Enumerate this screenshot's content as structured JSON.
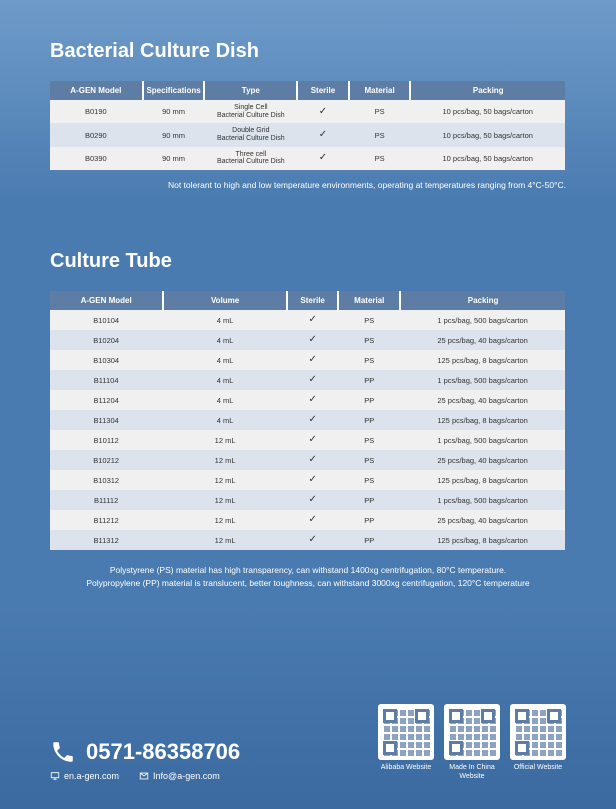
{
  "dish": {
    "title": "Bacterial Culture Dish",
    "columns": [
      "A-GEN Model",
      "Specifications",
      "Type",
      "Sterile",
      "Material",
      "Packing"
    ],
    "col_widths": [
      "18%",
      "12%",
      "18%",
      "10%",
      "12%",
      "30%"
    ],
    "rows": [
      {
        "model": "B0190",
        "spec": "90 mm",
        "type": "Single Cell\nBacterial Culture Dish",
        "sterile": "✓",
        "material": "PS",
        "packing": "10 pcs/bag, 50 bags/carton"
      },
      {
        "model": "B0290",
        "spec": "90 mm",
        "type": "Double Grid\nBacterial Culture Dish",
        "sterile": "✓",
        "material": "PS",
        "packing": "10 pcs/bag, 50 bags/carton"
      },
      {
        "model": "B0390",
        "spec": "90 mm",
        "type": "Three cell\nBacterial Culture Dish",
        "sterile": "✓",
        "material": "PS",
        "packing": "10 pcs/bag, 50 bags/carton"
      }
    ],
    "note": "Not tolerant to high and low temperature environments, operating at temperatures ranging from 4°C-50°C."
  },
  "tube": {
    "title": "Culture Tube",
    "columns": [
      "A-GEN Model",
      "Volume",
      "Sterile",
      "Material",
      "Packing"
    ],
    "col_widths": [
      "22%",
      "24%",
      "10%",
      "12%",
      "32%"
    ],
    "rows": [
      {
        "model": "B10104",
        "vol": "4 mL",
        "sterile": "✓",
        "material": "PS",
        "packing": "1 pcs/bag, 500 bags/carton"
      },
      {
        "model": "B10204",
        "vol": "4 mL",
        "sterile": "✓",
        "material": "PS",
        "packing": "25 pcs/bag, 40 bags/carton"
      },
      {
        "model": "B10304",
        "vol": "4 mL",
        "sterile": "✓",
        "material": "PS",
        "packing": "125 pcs/bag, 8 bags/carton"
      },
      {
        "model": "B11104",
        "vol": "4 mL",
        "sterile": "✓",
        "material": "PP",
        "packing": "1 pcs/bag, 500 bags/carton"
      },
      {
        "model": "B11204",
        "vol": "4 mL",
        "sterile": "✓",
        "material": "PP",
        "packing": "25 pcs/bag, 40 bags/carton"
      },
      {
        "model": "B11304",
        "vol": "4 mL",
        "sterile": "✓",
        "material": "PP",
        "packing": "125 pcs/bag, 8 bags/carton"
      },
      {
        "model": "B10112",
        "vol": "12 mL",
        "sterile": "✓",
        "material": "PS",
        "packing": "1 pcs/bag, 500 bags/carton"
      },
      {
        "model": "B10212",
        "vol": "12 mL",
        "sterile": "✓",
        "material": "PS",
        "packing": "25 pcs/bag, 40 bags/carton"
      },
      {
        "model": "B10312",
        "vol": "12 mL",
        "sterile": "✓",
        "material": "PS",
        "packing": "125 pcs/bag, 8 bags/carton"
      },
      {
        "model": "B11112",
        "vol": "12 mL",
        "sterile": "✓",
        "material": "PP",
        "packing": "1 pcs/bag, 500 bags/carton"
      },
      {
        "model": "B11212",
        "vol": "12 mL",
        "sterile": "✓",
        "material": "PP",
        "packing": "25 pcs/bag, 40 bags/carton"
      },
      {
        "model": "B11312",
        "vol": "12 mL",
        "sterile": "✓",
        "material": "PP",
        "packing": "125 pcs/bag, 8 bags/carton"
      }
    ],
    "note1": "Polystyrene (PS) material has high transparency, can withstand 1400xg centrifugation, 80°C temperature.",
    "note2": "Polypropylene (PP) material is translucent, better toughness, can withstand 3000xg centrifugation, 120°C temperature"
  },
  "footer": {
    "phone": "0571-86358706",
    "web": "en.a-gen.com",
    "email": "Info@a-gen.com",
    "qr": [
      {
        "label": "Alibaba Website"
      },
      {
        "label": "Made In China\nWebsite"
      },
      {
        "label": "Official Website"
      }
    ]
  },
  "colors": {
    "header_bg": "#5d7da5",
    "row_odd": "#f0f0f0",
    "row_even": "#dce3ed"
  }
}
